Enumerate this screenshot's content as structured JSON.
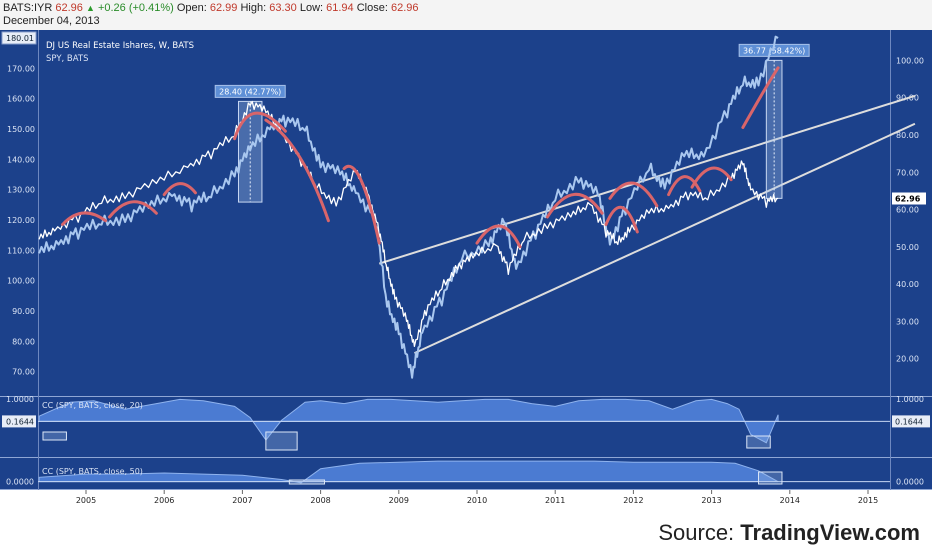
{
  "header": {
    "symbol": "BATS:IYR",
    "last": "62.96",
    "change": "+0.26 (+0.41%)",
    "open_label": "Open:",
    "open": "62.99",
    "high_label": "High:",
    "high": "63.30",
    "low_label": "Low:",
    "low": "61.94",
    "close_label": "Close:",
    "close": "62.96",
    "date": "December 04, 2013"
  },
  "legend": {
    "main": "DJ US Real Estate Ishares, W, BATS",
    "compare": "SPY, BATS",
    "cc20": "CC (SPY, BATS, close, 20)",
    "cc50": "CC (SPY, BATS, close, 50)"
  },
  "source": {
    "prefix": "Source: ",
    "brand": "TradingView.com"
  },
  "colors": {
    "bg": "#1c418b",
    "iyr": "#ffffff",
    "spy": "#a9c7ef",
    "arc": "#d9656a",
    "channel": "#dddddd",
    "cc_fill": "#4b7bd2",
    "cc_line": "#8fb3ee"
  },
  "chart_data": [
    {
      "type": "line",
      "title": "DJ US Real Estate Ishares, W, BATS",
      "x_ticks": [
        "2005",
        "2006",
        "2007",
        "2008",
        "2009",
        "2010",
        "2011",
        "2012",
        "2013",
        "2014",
        "2015"
      ],
      "left_axis": {
        "ticks": [
          "70.00",
          "80.00",
          "90.00",
          "100.00",
          "110.00",
          "120.00",
          "130.00",
          "140.00",
          "150.00",
          "160.00",
          "170.00"
        ],
        "range": [
          62,
          180
        ],
        "marker": "180.01"
      },
      "right_axis": {
        "ticks": [
          "20.00",
          "30.00",
          "40.00",
          "50.00",
          "60.00",
          "70.00",
          "80.00",
          "90.00",
          "100.00"
        ],
        "range": [
          10,
          106
        ],
        "marker": "62.96"
      },
      "series": [
        {
          "name": "DJ US Real Estate Ishares",
          "axis": "right",
          "points": [
            [
              2004.4,
              52
            ],
            [
              2004.6,
              55
            ],
            [
              2004.9,
              58
            ],
            [
              2005.2,
              62
            ],
            [
              2005.5,
              64
            ],
            [
              2005.9,
              67
            ],
            [
              2006.3,
              72
            ],
            [
              2006.6,
              75
            ],
            [
              2006.9,
              80
            ],
            [
              2007.1,
              89
            ],
            [
              2007.3,
              86
            ],
            [
              2007.5,
              81
            ],
            [
              2007.75,
              73
            ],
            [
              2007.95,
              66
            ],
            [
              2008.2,
              62
            ],
            [
              2008.45,
              70
            ],
            [
              2008.6,
              65
            ],
            [
              2008.75,
              54
            ],
            [
              2008.85,
              44
            ],
            [
              2008.95,
              37
            ],
            [
              2009.1,
              30
            ],
            [
              2009.2,
              24
            ],
            [
              2009.35,
              33
            ],
            [
              2009.55,
              39
            ],
            [
              2009.75,
              45
            ],
            [
              2009.95,
              47
            ],
            [
              2010.25,
              51
            ],
            [
              2010.4,
              44
            ],
            [
              2010.6,
              52
            ],
            [
              2010.9,
              56
            ],
            [
              2011.2,
              58
            ],
            [
              2011.45,
              62
            ],
            [
              2011.65,
              54
            ],
            [
              2011.8,
              51
            ],
            [
              2011.95,
              55
            ],
            [
              2012.2,
              59
            ],
            [
              2012.45,
              61
            ],
            [
              2012.7,
              64
            ],
            [
              2012.95,
              63
            ],
            [
              2013.25,
              69
            ],
            [
              2013.4,
              72
            ],
            [
              2013.5,
              66
            ],
            [
              2013.7,
              62
            ],
            [
              2013.85,
              63
            ]
          ]
        },
        {
          "name": "SPY",
          "axis": "left",
          "points": [
            [
              2004.4,
              109
            ],
            [
              2004.65,
              113
            ],
            [
              2004.9,
              116
            ],
            [
              2005.2,
              119
            ],
            [
              2005.5,
              121
            ],
            [
              2005.8,
              124
            ],
            [
              2006.1,
              129
            ],
            [
              2006.35,
              125
            ],
            [
              2006.6,
              128
            ],
            [
              2006.9,
              136
            ],
            [
              2007.1,
              143
            ],
            [
              2007.35,
              151
            ],
            [
              2007.55,
              153
            ],
            [
              2007.8,
              150
            ],
            [
              2008.0,
              139
            ],
            [
              2008.25,
              135
            ],
            [
              2008.45,
              130
            ],
            [
              2008.7,
              120
            ],
            [
              2008.85,
              92
            ],
            [
              2009.0,
              84
            ],
            [
              2009.17,
              68
            ],
            [
              2009.3,
              84
            ],
            [
              2009.55,
              94
            ],
            [
              2009.8,
              107
            ],
            [
              2010.15,
              113
            ],
            [
              2010.35,
              119
            ],
            [
              2010.5,
              105
            ],
            [
              2010.75,
              116
            ],
            [
              2011.0,
              127
            ],
            [
              2011.3,
              134
            ],
            [
              2011.55,
              128
            ],
            [
              2011.7,
              113
            ],
            [
              2011.9,
              124
            ],
            [
              2012.2,
              137
            ],
            [
              2012.4,
              132
            ],
            [
              2012.65,
              141
            ],
            [
              2012.9,
              142
            ],
            [
              2013.2,
              156
            ],
            [
              2013.4,
              165
            ],
            [
              2013.6,
              166
            ],
            [
              2013.85,
              180
            ]
          ]
        }
      ],
      "annotations": [
        {
          "text": "28.40 (42.77%)",
          "x_from": 2006.95,
          "x_to": 2007.25
        },
        {
          "text": "36.77 (58.42%)",
          "x_from": 2013.7,
          "x_to": 2013.9
        }
      ]
    },
    {
      "type": "area",
      "title": "CC (SPY, BATS, close, 20)",
      "y_ticks": [
        "1.0000"
      ],
      "range": [
        -1,
        1
      ],
      "marker": "0.1644",
      "x": [
        2004.4,
        2004.8,
        2005.1,
        2005.5,
        2005.9,
        2006.2,
        2006.5,
        2006.9,
        2007.1,
        2007.3,
        2007.5,
        2007.8,
        2008.0,
        2008.3,
        2008.6,
        2008.9,
        2009.2,
        2009.5,
        2009.8,
        2010.1,
        2010.4,
        2010.7,
        2011.0,
        2011.3,
        2011.6,
        2011.9,
        2012.2,
        2012.5,
        2012.8,
        2013.0,
        2013.2,
        2013.35,
        2013.5,
        2013.7,
        2013.85
      ],
      "values": [
        0.35,
        0.85,
        0.9,
        0.6,
        0.8,
        0.95,
        0.9,
        0.7,
        0.3,
        -0.5,
        0.2,
        0.85,
        0.9,
        0.8,
        0.95,
        0.95,
        0.9,
        0.85,
        0.9,
        0.95,
        0.95,
        0.8,
        0.7,
        0.9,
        0.95,
        0.95,
        0.9,
        0.6,
        0.9,
        0.95,
        0.8,
        0.6,
        -0.3,
        -0.6,
        0.4
      ]
    },
    {
      "type": "area",
      "title": "CC (SPY, BATS, close, 50)",
      "y_ticks": [
        "0.0000"
      ],
      "range": [
        -0.2,
        1
      ],
      "x": [
        2004.4,
        2005.0,
        2005.5,
        2006.0,
        2006.5,
        2007.0,
        2007.5,
        2007.75,
        2008.0,
        2008.5,
        2009.0,
        2009.5,
        2010.0,
        2010.5,
        2011.0,
        2011.5,
        2012.0,
        2012.5,
        2013.0,
        2013.3,
        2013.6,
        2013.85
      ],
      "values": [
        0.2,
        0.35,
        0.35,
        0.4,
        0.35,
        0.3,
        0.1,
        -0.05,
        0.6,
        0.85,
        0.9,
        0.95,
        0.95,
        0.95,
        0.95,
        0.95,
        0.9,
        0.9,
        0.9,
        0.85,
        0.5,
        0.0
      ]
    }
  ]
}
